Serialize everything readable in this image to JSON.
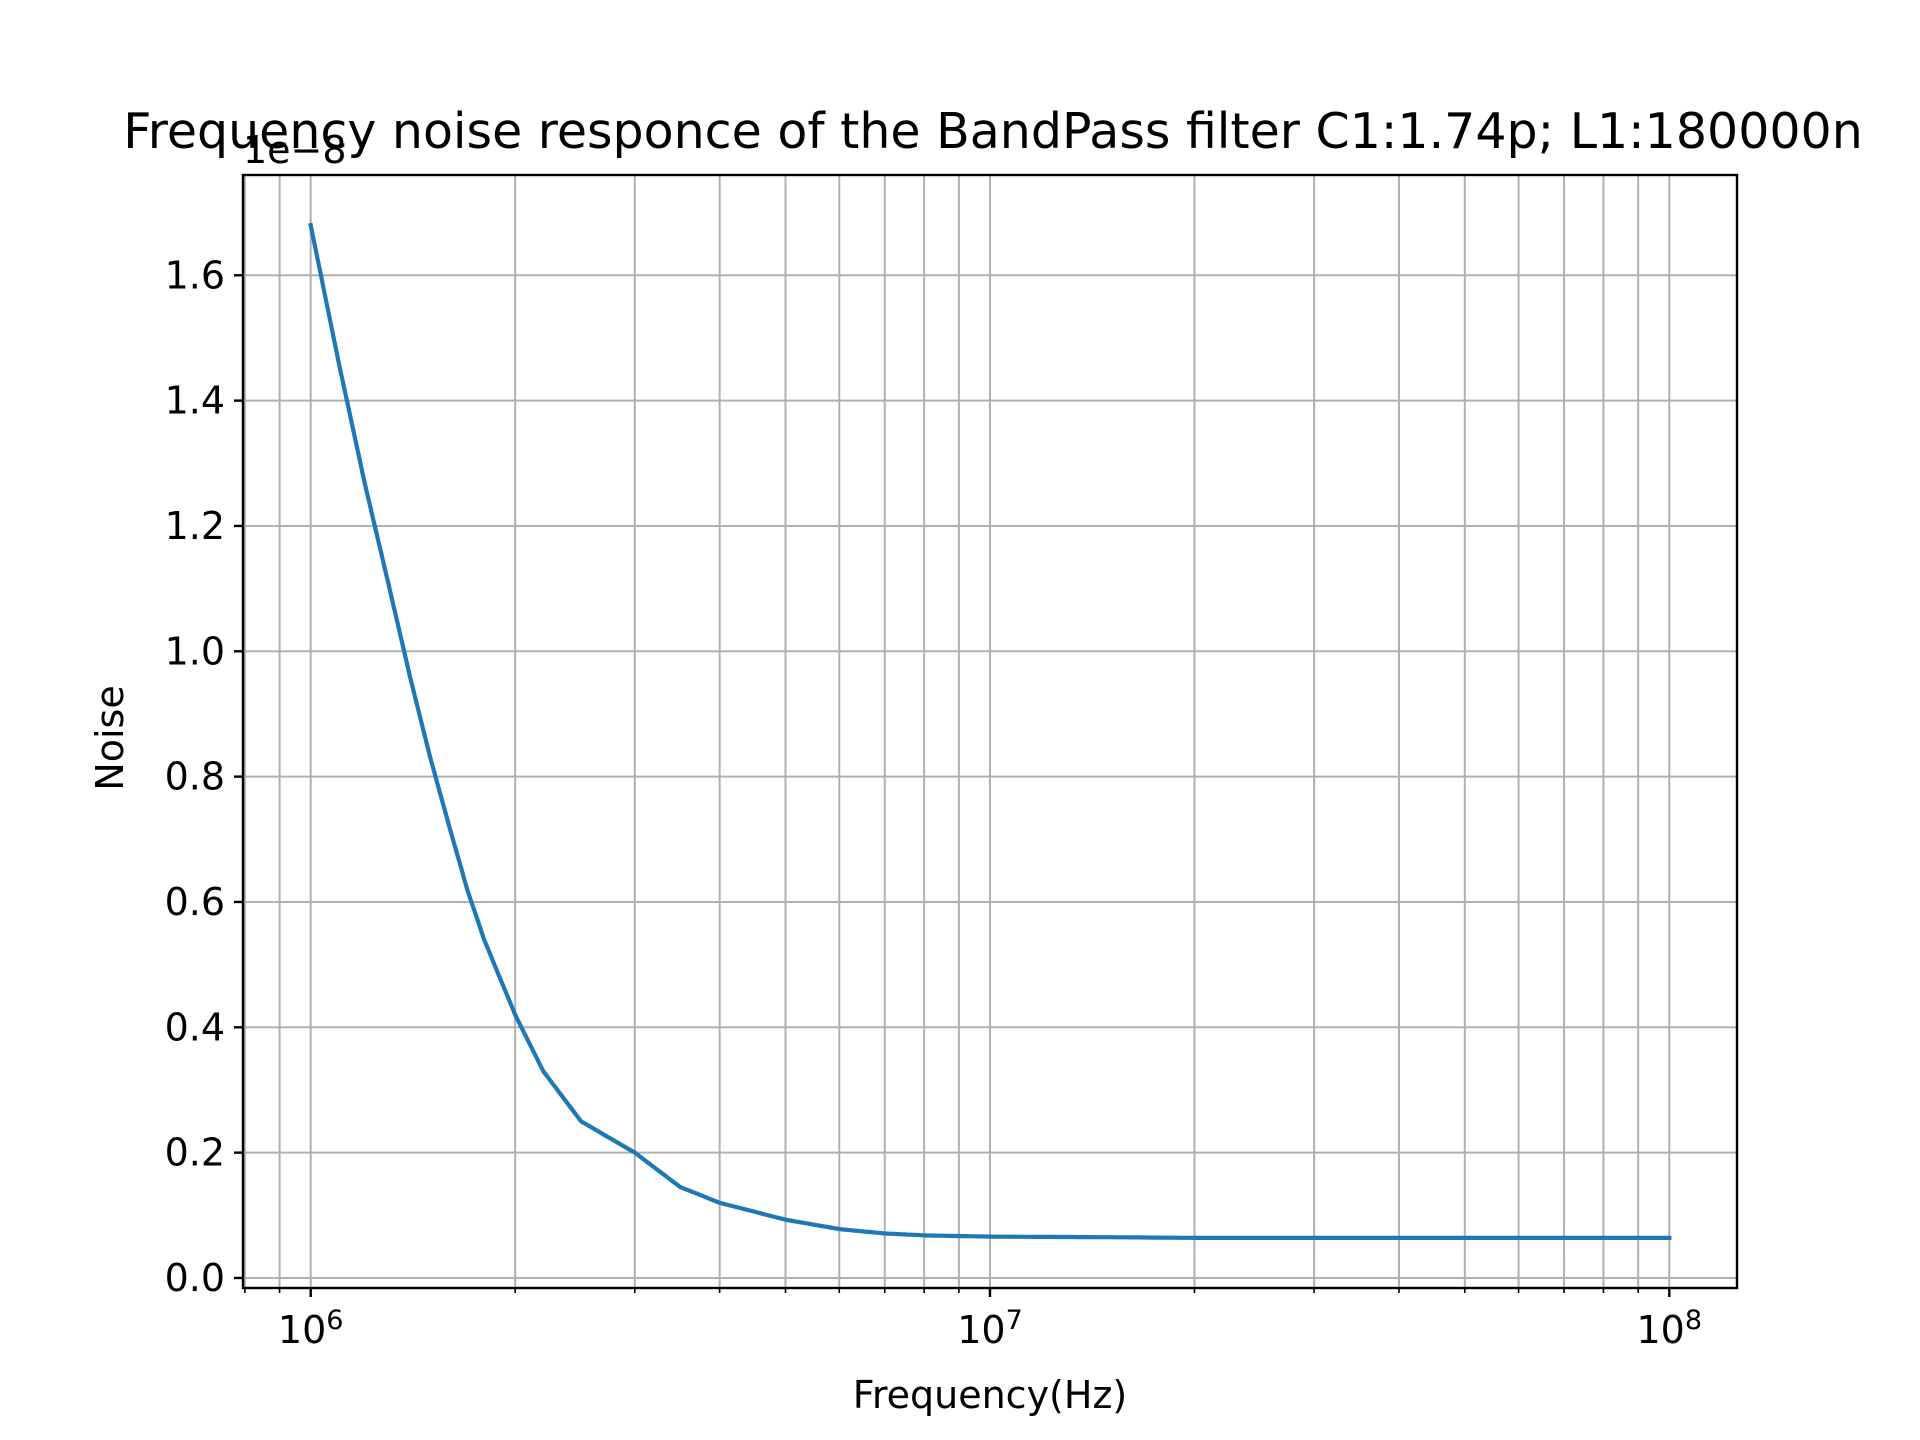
{
  "chart_data": {
    "type": "line",
    "title": "Frequency noise responce of the BandPass filter C1:1.74p; L1:180000n",
    "xlabel": "Frequency(Hz)",
    "ylabel": "Noise",
    "x_scale": "log",
    "xlim": [
      795000,
      125800000
    ],
    "ylim": [
      -0.016,
      1.76
    ],
    "y_offset_label": "1e−8",
    "grid": true,
    "x_major_ticks": [
      {
        "value": 1000000,
        "base": "10",
        "exp": "6"
      },
      {
        "value": 10000000,
        "base": "10",
        "exp": "7"
      },
      {
        "value": 100000000,
        "base": "10",
        "exp": "8"
      }
    ],
    "y_ticks": [
      {
        "value": 0.0,
        "label": "0.0"
      },
      {
        "value": 0.2,
        "label": "0.2"
      },
      {
        "value": 0.4,
        "label": "0.4"
      },
      {
        "value": 0.6,
        "label": "0.6"
      },
      {
        "value": 0.8,
        "label": "0.8"
      },
      {
        "value": 1.0,
        "label": "1.0"
      },
      {
        "value": 1.2,
        "label": "1.2"
      },
      {
        "value": 1.4,
        "label": "1.4"
      },
      {
        "value": 1.6,
        "label": "1.6"
      }
    ],
    "series": [
      {
        "name": "Noise",
        "color": "#1f77b4",
        "x": [
          1000000,
          1100000,
          1200000,
          1300000,
          1400000,
          1500000,
          1600000,
          1700000,
          1800000,
          2000000,
          2200000,
          2500000,
          3000000,
          3500000,
          4000000,
          5000000,
          6000000,
          7000000,
          8000000,
          10000000,
          15000000,
          20000000,
          30000000,
          50000000,
          70000000,
          100000000
        ],
        "values": [
          1.68,
          1.46,
          1.27,
          1.11,
          0.96,
          0.83,
          0.72,
          0.62,
          0.54,
          0.42,
          0.33,
          0.25,
          0.2,
          0.145,
          0.12,
          0.093,
          0.078,
          0.071,
          0.068,
          0.066,
          0.065,
          0.064,
          0.064,
          0.064,
          0.064,
          0.064
        ]
      }
    ]
  }
}
